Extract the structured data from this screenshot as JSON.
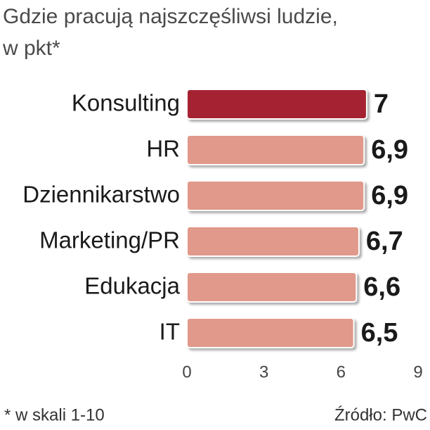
{
  "chart_data": {
    "type": "bar",
    "orientation": "horizontal",
    "title": "Gdzie pracują najszczęśliwsi ludzie,",
    "subtitle": "w pkt*",
    "categories": [
      "Konsulting",
      "HR",
      "Dziennikarstwo",
      "Marketing/PR",
      "Edukacja",
      "IT"
    ],
    "values": [
      7,
      6.9,
      6.9,
      6.7,
      6.6,
      6.5
    ],
    "value_labels": [
      "7",
      "6,9",
      "6,9",
      "6,7",
      "6,6",
      "6,5"
    ],
    "colors": [
      "#a52232",
      "#e0998a",
      "#e0998a",
      "#e0998a",
      "#e0998a",
      "#e0998a"
    ],
    "xlim": [
      0,
      9
    ],
    "xticks": [
      0,
      3,
      6,
      9
    ],
    "footnote": "* w skali 1-10",
    "source": "Źródło: PwC"
  }
}
